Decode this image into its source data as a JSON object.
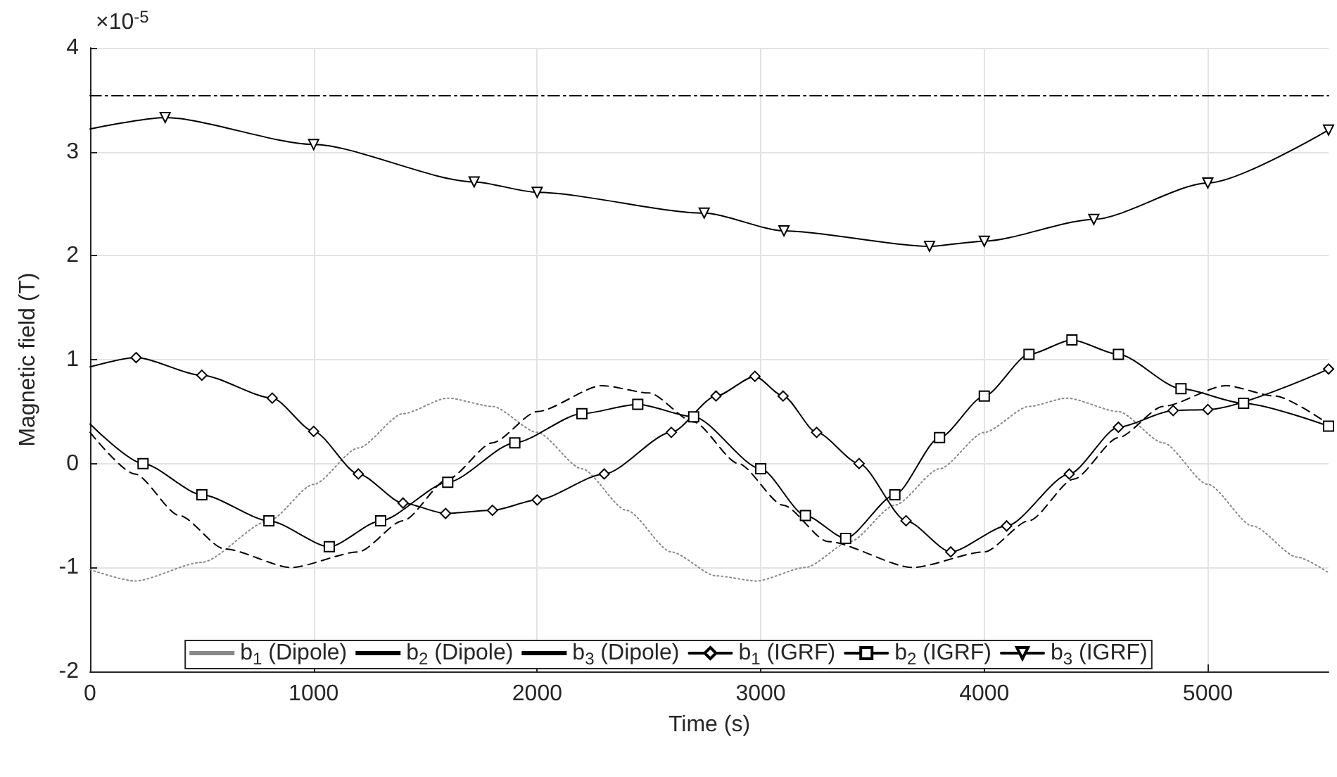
{
  "chart_data": {
    "type": "line",
    "xlabel": "Time (s)",
    "ylabel": "Magnetic field (T)",
    "annotations": [
      "×10$^{-5}$"
    ],
    "xlim": [
      0,
      5540
    ],
    "xticks": [
      0,
      1000,
      2000,
      3000,
      4000,
      5000
    ],
    "ylim": [
      -2,
      4
    ],
    "yticks": [
      -2,
      -1,
      0,
      1,
      2,
      3,
      4
    ],
    "grid": true,
    "legend": "bottom",
    "series": [
      {
        "name": "b$_{1}$ (Dipole)",
        "color": "#888888",
        "line_style": "dotted",
        "marker": "none",
        "x": [
          0,
          200,
          500,
          800,
          1000,
          1200,
          1400,
          1600,
          1800,
          2000,
          2200,
          2400,
          2600,
          2800,
          2980,
          3200,
          3400,
          3600,
          3800,
          4000,
          4200,
          4370,
          4600,
          4800,
          5000,
          5200,
          5400,
          5540
        ],
        "values": [
          -1.02,
          -1.13,
          -0.95,
          -0.55,
          -0.2,
          0.15,
          0.48,
          0.63,
          0.55,
          0.3,
          -0.05,
          -0.45,
          -0.85,
          -1.08,
          -1.13,
          -1.0,
          -0.75,
          -0.4,
          -0.05,
          0.3,
          0.55,
          0.63,
          0.5,
          0.2,
          -0.2,
          -0.6,
          -0.9,
          -1.05
        ]
      },
      {
        "name": "b$_{2}$ (Dipole)",
        "color": "#000000",
        "line_style": "dashed",
        "marker": "none",
        "x": [
          0,
          200,
          400,
          600,
          900,
          1200,
          1400,
          1600,
          1800,
          2000,
          2290,
          2500,
          2700,
          2900,
          3100,
          3300,
          3680,
          4000,
          4200,
          4400,
          4600,
          4800,
          5080,
          5300,
          5540
        ],
        "values": [
          0.3,
          -0.1,
          -0.5,
          -0.82,
          -1.0,
          -0.85,
          -0.55,
          -0.15,
          0.2,
          0.5,
          0.75,
          0.68,
          0.4,
          0.0,
          -0.4,
          -0.75,
          -1.0,
          -0.85,
          -0.55,
          -0.15,
          0.25,
          0.55,
          0.75,
          0.65,
          0.38
        ]
      },
      {
        "name": "b$_{3}$ (Dipole)",
        "color": "#000000",
        "line_style": "dashdot",
        "marker": "none",
        "x": [
          0,
          5540
        ],
        "values": [
          3.54,
          3.54
        ]
      },
      {
        "name": "b$_{1}$ (IGRF)",
        "color": "#000000",
        "line_style": "solid",
        "marker": "diamond",
        "x": [
          0,
          206,
          500,
          815,
          1000,
          1200,
          1400,
          1590,
          1800,
          2000,
          2300,
          2600,
          2800,
          2974,
          3100,
          3250,
          3440,
          3650,
          3850,
          4100,
          4380,
          4600,
          4845,
          5000,
          5540
        ],
        "values": [
          0.93,
          1.02,
          0.85,
          0.63,
          0.31,
          -0.1,
          -0.38,
          -0.48,
          -0.45,
          -0.35,
          -0.1,
          0.3,
          0.65,
          0.84,
          0.65,
          0.3,
          0.0,
          -0.55,
          -0.85,
          -0.6,
          -0.1,
          0.35,
          0.51,
          0.52,
          0.91
        ]
      },
      {
        "name": "b$_{2}$ (IGRF)",
        "color": "#000000",
        "line_style": "solid",
        "marker": "square",
        "x": [
          0,
          237,
          500,
          800,
          1070,
          1300,
          1600,
          1900,
          2200,
          2450,
          2700,
          3000,
          3200,
          3380,
          3600,
          3800,
          4000,
          4200,
          4392,
          4600,
          4880,
          5160,
          5540
        ],
        "values": [
          0.38,
          0.0,
          -0.3,
          -0.55,
          -0.8,
          -0.55,
          -0.18,
          0.2,
          0.48,
          0.57,
          0.45,
          -0.05,
          -0.5,
          -0.72,
          -0.3,
          0.25,
          0.65,
          1.05,
          1.19,
          1.05,
          0.72,
          0.58,
          0.36
        ]
      },
      {
        "name": "b$_{3}$ (IGRF)",
        "color": "#000000",
        "line_style": "solid",
        "marker": "triangle",
        "x": [
          0,
          336,
          1000,
          1718,
          2000,
          2747,
          3104,
          3755,
          4000,
          4490,
          5000,
          5540
        ],
        "values": [
          3.22,
          3.33,
          3.07,
          2.71,
          2.61,
          2.41,
          2.24,
          2.09,
          2.14,
          2.35,
          2.7,
          3.21
        ]
      }
    ]
  }
}
